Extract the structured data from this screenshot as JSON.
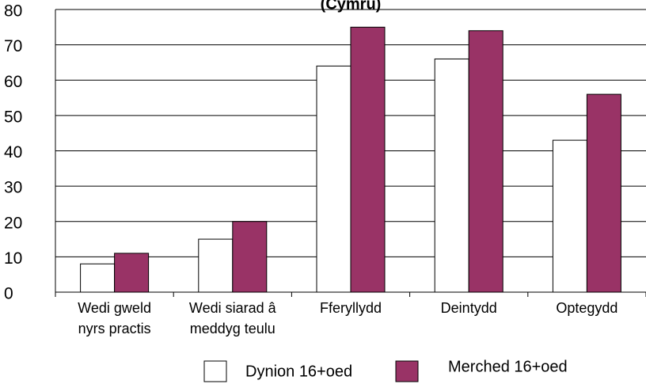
{
  "chart_data": {
    "type": "bar",
    "title": "(Cymru)",
    "categories": [
      [
        "Wedi gweld",
        "nyrs practis"
      ],
      [
        "Wedi siarad â",
        "meddyg teulu"
      ],
      [
        "Fferyllydd"
      ],
      [
        "Deintydd"
      ],
      [
        "Optegydd"
      ]
    ],
    "series": [
      {
        "name": "Dynion 16+oed",
        "color": "#ffffff",
        "values": [
          8,
          15,
          64,
          66,
          43
        ]
      },
      {
        "name": "Merched 16+oed",
        "color": "#993366",
        "values": [
          11,
          20,
          75,
          74,
          56
        ]
      }
    ],
    "ylim": [
      0,
      80
    ],
    "yticks": [
      0,
      10,
      20,
      30,
      40,
      50,
      60,
      70,
      80
    ],
    "grid": true,
    "legend": "bottom"
  }
}
